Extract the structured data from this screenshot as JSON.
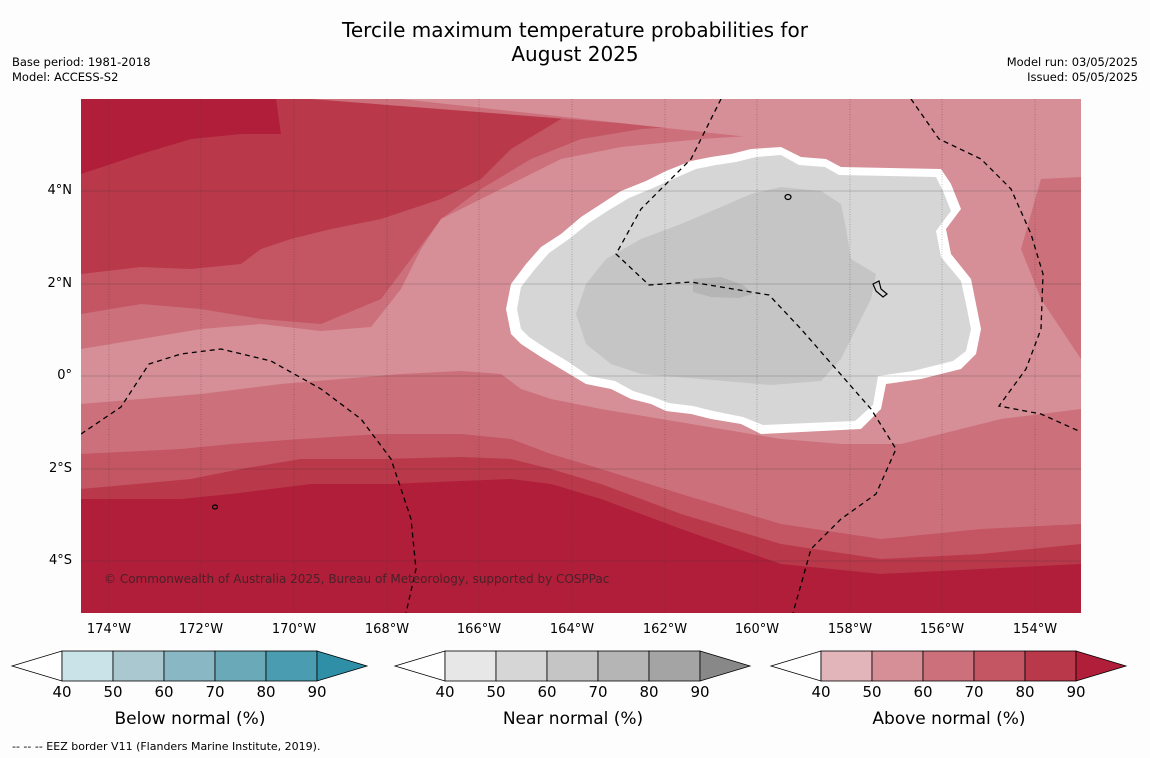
{
  "title_line1": "Tercile maximum temperature probabilities for",
  "title_line2": "August 2025",
  "base_period": "Base period: 1981-2018",
  "model": "Model: ACCESS-S2",
  "model_run": "Model run: 03/05/2025",
  "issued": "Issued: 05/05/2025",
  "lat_ticks": [
    "4°N",
    "2°N",
    "0°",
    "2°S",
    "4°S"
  ],
  "lon_ticks": [
    "174°W",
    "172°W",
    "170°W",
    "168°W",
    "166°W",
    "164°W",
    "162°W",
    "160°W",
    "158°W",
    "156°W",
    "154°W"
  ],
  "copyright": "© Commonwealth of Australia 2025, Bureau of Meteorology, supported by COSPPac",
  "footnote": "--  --  -- EEZ border V11 (Flanders Marine Institute, 2019).",
  "colorbars": [
    {
      "label": "Below normal (%)",
      "ticks": [
        "40",
        "50",
        "60",
        "70",
        "80",
        "90"
      ],
      "colors": [
        "#cae3e9",
        "#a9c8cf",
        "#8ab7c4",
        "#6aaab8",
        "#4a9db0",
        "#2f8fa6"
      ]
    },
    {
      "label": "Near normal (%)",
      "ticks": [
        "40",
        "50",
        "60",
        "70",
        "80",
        "90"
      ],
      "colors": [
        "#e7e7e7",
        "#d6d6d6",
        "#c5c5c5",
        "#b5b5b5",
        "#a4a4a4",
        "#888888"
      ]
    },
    {
      "label": "Above normal (%)",
      "ticks": [
        "40",
        "50",
        "60",
        "70",
        "80",
        "90"
      ],
      "colors": [
        "#e2b5bb",
        "#d68e97",
        "#cc707b",
        "#c45563",
        "#b9384a",
        "#b01e3a"
      ]
    }
  ],
  "map_colors": {
    "above_40": "#e2b5bb",
    "above_50": "#d68e97",
    "above_60": "#cc707b",
    "above_70": "#c45563",
    "above_80": "#b9384a",
    "above_90": "#b01e3a",
    "near_40": "#e7e7e7",
    "near_50": "#d6d6d6",
    "near_60": "#c5c5c5",
    "near_70": "#b5b5b5"
  }
}
